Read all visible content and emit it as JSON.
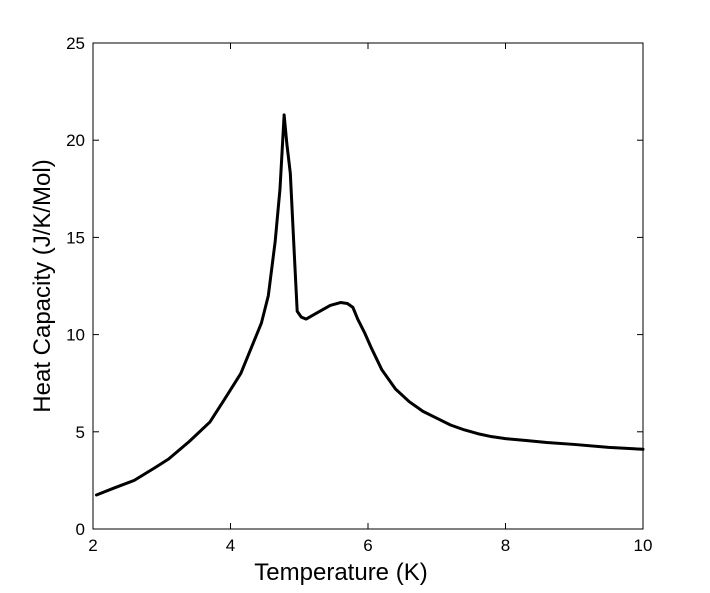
{
  "chart_data": {
    "type": "line",
    "title": "",
    "xlabel": "Temperature (K)",
    "ylabel": "Heat Capacity (J/K/Mol)",
    "xlim": [
      2,
      10
    ],
    "ylim": [
      0,
      25
    ],
    "xticks": [
      2,
      4,
      6,
      8,
      10
    ],
    "yticks": [
      0,
      5,
      10,
      15,
      20,
      25
    ],
    "grid": false,
    "legend": "none",
    "line_color": "#000000",
    "series": [
      {
        "x": [
          2.05,
          2.3,
          2.6,
          2.9,
          3.1,
          3.4,
          3.7,
          3.9,
          4.15,
          4.3,
          4.45,
          4.55,
          4.65,
          4.72,
          4.78,
          4.82,
          4.87,
          4.93,
          4.97,
          5.03,
          5.1,
          5.25,
          5.45,
          5.6,
          5.7,
          5.78,
          5.85,
          5.95,
          6.05,
          6.2,
          6.4,
          6.6,
          6.8,
          7.0,
          7.2,
          7.4,
          7.6,
          7.8,
          8.0,
          8.3,
          8.6,
          9.0,
          9.5,
          10.0
        ],
        "y": [
          1.75,
          2.1,
          2.5,
          3.15,
          3.6,
          4.5,
          5.5,
          6.6,
          8.0,
          9.3,
          10.6,
          12.0,
          14.8,
          17.5,
          21.3,
          19.8,
          18.3,
          14.0,
          11.2,
          10.9,
          10.8,
          11.1,
          11.5,
          11.65,
          11.6,
          11.4,
          10.8,
          10.1,
          9.3,
          8.2,
          7.2,
          6.55,
          6.05,
          5.7,
          5.35,
          5.1,
          4.9,
          4.75,
          4.65,
          4.55,
          4.45,
          4.35,
          4.2,
          4.1
        ]
      }
    ]
  }
}
